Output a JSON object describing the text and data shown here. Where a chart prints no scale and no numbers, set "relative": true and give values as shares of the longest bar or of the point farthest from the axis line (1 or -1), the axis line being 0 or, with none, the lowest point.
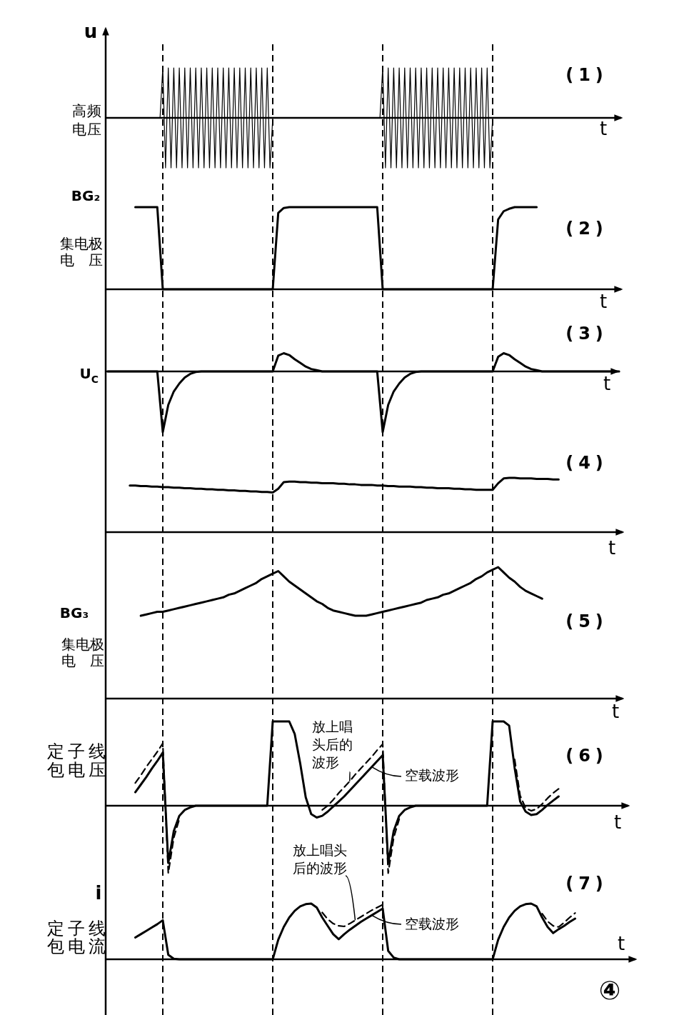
{
  "chart_data": [
    {
      "type": "line",
      "title": "(1)",
      "xlabel": "t",
      "ylabel": "高频电压",
      "annotations": [
        "u"
      ],
      "relative": true,
      "categories": [
        null,
        null,
        null,
        null,
        null,
        null,
        null,
        null,
        null,
        null,
        null,
        null,
        null,
        null,
        null,
        null,
        null,
        null,
        null,
        null,
        null,
        null,
        null,
        null,
        null,
        null,
        null,
        null,
        null,
        null,
        null,
        null,
        null,
        null,
        null,
        null,
        null,
        null,
        null,
        null,
        null,
        null,
        null,
        null,
        null,
        null,
        null,
        null,
        null,
        null,
        null,
        null,
        null,
        null,
        null,
        null,
        null,
        null,
        null,
        null,
        null,
        null,
        null,
        null,
        null,
        null,
        null,
        null,
        null,
        null,
        null,
        null,
        null,
        null,
        null,
        null,
        null,
        null,
        null,
        null,
        null,
        null,
        null,
        null,
        null,
        null,
        null,
        null,
        null,
        null,
        null,
        null,
        null,
        null,
        null,
        null,
        null,
        null,
        null,
        null,
        null,
        null,
        null,
        null,
        null,
        null,
        null,
        null,
        null,
        null,
        null,
        null,
        null,
        null,
        null,
        null,
        null,
        null,
        null,
        null,
        null,
        null,
        null,
        null,
        null,
        null,
        null,
        null,
        null,
        null,
        null,
        null,
        null,
        null,
        null,
        null,
        null,
        null,
        null,
        null,
        null,
        null,
        null,
        null,
        null,
        null,
        null,
        null,
        null,
        null,
        null,
        null,
        null,
        null,
        null,
        null,
        null,
        null,
        null,
        null,
        null,
        null,
        null,
        null,
        null,
        null,
        null,
        null,
        null,
        null,
        null,
        null,
        null,
        null,
        null,
        null,
        null,
        null,
        null,
        null,
        null,
        null,
        null,
        null,
        null,
        null,
        null
      ],
      "series": [
        {
          "color": "#000000",
          "values": [
            0,
            0,
            0,
            0,
            0,
            0,
            0,
            0,
            0,
            0,
            0,
            0,
            0,
            0,
            0,
            0,
            0,
            0,
            0,
            0,
            1,
            -1,
            1,
            -1,
            1,
            -1,
            1,
            -1,
            1,
            -1,
            1,
            -1,
            1,
            -1,
            1,
            -1,
            1,
            -1,
            1,
            -1,
            1,
            -1,
            1,
            -1,
            1,
            -1,
            1,
            -1,
            1,
            -1,
            1,
            -1,
            1,
            -1,
            1,
            -1,
            1,
            -1,
            1,
            -1,
            0,
            0,
            0,
            0,
            0,
            0,
            0,
            0,
            0,
            0,
            0,
            0,
            0,
            0,
            0,
            0,
            0,
            0,
            0,
            0,
            0,
            0,
            0,
            0,
            0,
            0,
            0,
            0,
            0,
            0,
            0,
            0,
            0,
            0,
            0,
            0,
            0,
            0,
            0,
            0,
            1,
            -1,
            1,
            -1,
            1,
            -1,
            1,
            -1,
            1,
            -1,
            1,
            -1,
            1,
            -1,
            1,
            -1,
            1,
            -1,
            1,
            -1,
            1,
            -1,
            1,
            -1,
            1,
            -1,
            1,
            -1,
            1,
            -1,
            1,
            -1,
            1,
            -1,
            1,
            -1,
            1,
            -1,
            1,
            -1,
            0,
            0,
            0,
            0,
            0,
            0,
            0,
            0,
            0,
            0,
            0,
            0,
            0,
            0,
            0,
            0,
            0,
            0,
            0,
            0,
            0,
            0,
            0,
            0,
            0,
            0,
            0,
            0,
            0,
            0,
            0,
            0,
            0,
            0,
            0,
            0,
            0,
            0,
            0,
            0,
            0,
            0,
            0,
            0,
            0,
            0,
            0
          ]
        }
      ]
    },
    {
      "type": "line",
      "title": "(2)",
      "xlabel": "t",
      "ylabel": "集电极电压",
      "annotations": [
        "BG₂"
      ],
      "relative": true,
      "categories": [
        null,
        null,
        null,
        null,
        null,
        null,
        null,
        null,
        null,
        null,
        null,
        null,
        null,
        null,
        null,
        null,
        null,
        null,
        null,
        null,
        null,
        null,
        null,
        null,
        null,
        null,
        null,
        null,
        null,
        null,
        null,
        null,
        null,
        null,
        null,
        null,
        null,
        null,
        null,
        null,
        null,
        null,
        null,
        null,
        null,
        null,
        null,
        null,
        null,
        null,
        null,
        null,
        null,
        null,
        null,
        null,
        null,
        null,
        null,
        null,
        null,
        null,
        null,
        null,
        null,
        null,
        null,
        null,
        null,
        null,
        null,
        null,
        null,
        null,
        null,
        null,
        null,
        null,
        null,
        null,
        null,
        null,
        null,
        null,
        null,
        null,
        null,
        null,
        null,
        null,
        null,
        null,
        null,
        null
      ],
      "series": [
        {
          "color": "#000000",
          "values": [
            null,
            null,
            null,
            null,
            null,
            1,
            1,
            1,
            1,
            1,
            0,
            0,
            0,
            0,
            0,
            0,
            0,
            0,
            0,
            0,
            0,
            0,
            0,
            0,
            0,
            0,
            0,
            0,
            0,
            0,
            0,
            0.93,
            0.99,
            1,
            1,
            1,
            1,
            1,
            1,
            1,
            1,
            1,
            1,
            1,
            1,
            1,
            1,
            1,
            1,
            1,
            0,
            0,
            0,
            0,
            0,
            0,
            0,
            0,
            0,
            0,
            0,
            0,
            0,
            0,
            0,
            0,
            0,
            0,
            0,
            0,
            0,
            0.85,
            0.95,
            0.98,
            1,
            1,
            1,
            1,
            1,
            null,
            null,
            null,
            null,
            null,
            null,
            null,
            null,
            null,
            null,
            null,
            null,
            null,
            null,
            null
          ]
        }
      ]
    },
    {
      "type": "line",
      "title": "(3)",
      "xlabel": "t",
      "ylabel": "U$_{C}$",
      "relative": true,
      "categories": [
        null,
        null,
        null,
        null,
        null,
        null,
        null,
        null,
        null,
        null,
        null,
        null,
        null,
        null,
        null,
        null,
        null,
        null,
        null,
        null,
        null,
        null,
        null,
        null,
        null,
        null,
        null,
        null,
        null,
        null,
        null,
        null,
        null,
        null,
        null,
        null,
        null,
        null,
        null,
        null,
        null,
        null,
        null,
        null,
        null,
        null,
        null,
        null,
        null,
        null,
        null,
        null,
        null,
        null,
        null,
        null,
        null,
        null,
        null,
        null,
        null,
        null,
        null,
        null,
        null,
        null,
        null,
        null,
        null,
        null,
        null,
        null,
        null,
        null,
        null,
        null,
        null,
        null,
        null,
        null,
        null,
        null,
        null,
        null,
        null,
        null,
        null,
        null,
        null,
        null,
        null,
        null,
        null,
        null
      ],
      "series": [
        {
          "color": "#000000",
          "values": [
            0,
            0,
            0,
            0,
            0,
            0,
            0,
            0,
            0,
            0,
            -1,
            -0.55,
            -0.33,
            -0.2,
            -0.1,
            -0.04,
            -0.01,
            0,
            0,
            0,
            0,
            0,
            0,
            0,
            0,
            0,
            0,
            0,
            0,
            0,
            0,
            0.26,
            0.3,
            0.27,
            0.2,
            0.14,
            0.08,
            0.04,
            0.02,
            0,
            0,
            0,
            0,
            0,
            0,
            0,
            0,
            0,
            0,
            0,
            -1,
            -0.55,
            -0.33,
            -0.2,
            -0.1,
            -0.04,
            -0.01,
            0,
            0,
            0,
            0,
            0,
            0,
            0,
            0,
            0,
            0,
            0,
            0,
            0,
            0,
            0.24,
            0.3,
            0.27,
            0.2,
            0.14,
            0.08,
            0.04,
            0.02,
            0,
            0,
            0,
            0,
            0,
            0,
            0,
            0,
            0,
            0,
            0,
            0,
            0,
            0,
            0
          ]
        }
      ]
    },
    {
      "type": "line",
      "title": "(4)",
      "xlabel": "t",
      "relative": true,
      "categories": [
        null,
        null,
        null,
        null,
        null,
        null,
        null,
        null,
        null,
        null,
        null,
        null,
        null,
        null,
        null,
        null,
        null,
        null,
        null,
        null,
        null,
        null,
        null,
        null,
        null,
        null,
        null,
        null,
        null,
        null,
        null,
        null,
        null,
        null,
        null,
        null,
        null,
        null,
        null,
        null,
        null,
        null,
        null,
        null,
        null,
        null,
        null,
        null,
        null,
        null,
        null,
        null,
        null,
        null,
        null,
        null,
        null,
        null,
        null,
        null,
        null,
        null,
        null,
        null,
        null,
        null,
        null,
        null,
        null,
        null,
        null,
        null,
        null,
        null,
        null,
        null,
        null,
        null,
        null,
        null,
        null,
        null,
        null,
        null,
        null,
        null,
        null,
        null,
        null,
        null,
        null,
        null,
        null,
        null
      ],
      "series": [
        {
          "color": "#000000",
          "values": [
            null,
            null,
            null,
            null,
            0.86,
            0.86,
            0.85,
            0.85,
            0.84,
            0.84,
            0.83,
            0.83,
            0.82,
            0.82,
            0.81,
            0.81,
            0.8,
            0.8,
            0.79,
            0.79,
            0.78,
            0.78,
            0.77,
            0.77,
            0.76,
            0.76,
            0.75,
            0.75,
            0.74,
            0.74,
            0.73,
            0.8,
            0.92,
            0.93,
            0.93,
            0.92,
            0.92,
            0.91,
            0.91,
            0.9,
            0.9,
            0.9,
            0.89,
            0.89,
            0.88,
            0.88,
            0.87,
            0.87,
            0.87,
            0.86,
            0.86,
            0.85,
            0.85,
            0.84,
            0.84,
            0.84,
            0.83,
            0.83,
            0.82,
            0.82,
            0.81,
            0.81,
            0.81,
            0.8,
            0.8,
            0.79,
            0.79,
            0.78,
            0.78,
            0.78,
            0.78,
            0.9,
            0.99,
            1,
            1,
            0.99,
            0.99,
            0.99,
            0.98,
            0.98,
            0.98,
            0.97,
            0.97,
            null,
            null,
            null,
            null,
            null,
            null,
            null,
            null,
            null,
            null,
            null
          ]
        }
      ]
    },
    {
      "type": "line",
      "title": "(5)",
      "xlabel": "t",
      "ylabel": "集电极电压",
      "annotations": [
        "BG₃"
      ],
      "relative": true,
      "categories": [
        null,
        null,
        null,
        null,
        null,
        null,
        null,
        null,
        null,
        null,
        null,
        null,
        null,
        null,
        null,
        null,
        null,
        null,
        null,
        null,
        null,
        null,
        null,
        null,
        null,
        null,
        null,
        null,
        null,
        null,
        null,
        null,
        null,
        null,
        null,
        null,
        null,
        null,
        null,
        null,
        null,
        null,
        null,
        null,
        null,
        null,
        null,
        null,
        null,
        null,
        null,
        null,
        null,
        null,
        null,
        null,
        null,
        null,
        null,
        null,
        null,
        null,
        null,
        null,
        null,
        null,
        null,
        null,
        null,
        null,
        null,
        null,
        null,
        null,
        null,
        null,
        null,
        null,
        null,
        null,
        null,
        null,
        null,
        null,
        null,
        null,
        null,
        null,
        null,
        null,
        null,
        null,
        null,
        null
      ],
      "series": [
        {
          "color": "#000000",
          "values": [
            null,
            null,
            null,
            null,
            null,
            null,
            0.63,
            0.64,
            0.65,
            0.66,
            0.66,
            0.67,
            0.68,
            0.69,
            0.7,
            0.71,
            0.72,
            0.73,
            0.74,
            0.75,
            0.76,
            0.77,
            0.79,
            0.8,
            0.82,
            0.84,
            0.86,
            0.88,
            0.91,
            0.93,
            0.95,
            0.97,
            0.93,
            0.89,
            0.86,
            0.83,
            0.8,
            0.77,
            0.74,
            0.72,
            0.69,
            0.67,
            0.66,
            0.65,
            0.64,
            0.63,
            0.63,
            0.63,
            0.64,
            0.65,
            0.66,
            0.67,
            0.68,
            0.69,
            0.7,
            0.71,
            0.72,
            0.73,
            0.75,
            0.76,
            0.77,
            0.79,
            0.8,
            0.82,
            0.84,
            0.86,
            0.88,
            0.91,
            0.93,
            0.96,
            0.98,
            1,
            0.96,
            0.92,
            0.89,
            0.85,
            0.82,
            0.8,
            0.78,
            0.76,
            null,
            null,
            null,
            null,
            null,
            null,
            null,
            null,
            null,
            null,
            null,
            null,
            null,
            null
          ]
        }
      ]
    },
    {
      "type": "line",
      "title": "(6)",
      "xlabel": "t",
      "ylabel": "定子线包电压",
      "relative": true,
      "categories": [
        null,
        null,
        null,
        null,
        null,
        null,
        null,
        null,
        null,
        null,
        null,
        null,
        null,
        null,
        null,
        null,
        null,
        null,
        null,
        null,
        null,
        null,
        null,
        null,
        null,
        null,
        null,
        null,
        null,
        null,
        null,
        null,
        null,
        null,
        null,
        null,
        null,
        null,
        null,
        null,
        null,
        null,
        null,
        null,
        null,
        null,
        null,
        null,
        null,
        null,
        null,
        null,
        null,
        null,
        null,
        null,
        null,
        null,
        null,
        null,
        null,
        null,
        null,
        null,
        null,
        null,
        null,
        null,
        null,
        null,
        null,
        null,
        null,
        null,
        null,
        null,
        null,
        null,
        null,
        null,
        null,
        null,
        null,
        null,
        null,
        null,
        null,
        null,
        null,
        null,
        null,
        null,
        null,
        null
      ],
      "series": [
        {
          "name": "空载波形",
          "color": "#000000",
          "values": [
            null,
            null,
            null,
            null,
            null,
            0.16,
            0.25,
            0.34,
            0.44,
            0.53,
            0.63,
            -0.68,
            -0.3,
            -0.12,
            -0.05,
            -0.02,
            0,
            0,
            0,
            0,
            0,
            0,
            0,
            0,
            0,
            0,
            0,
            0,
            0,
            0,
            1,
            1,
            1,
            1,
            0.85,
            0.5,
            0.1,
            -0.1,
            -0.14,
            -0.12,
            -0.07,
            -0.01,
            0.05,
            0.11,
            0.18,
            0.25,
            0.32,
            0.39,
            0.46,
            0.53,
            0.6,
            -0.68,
            -0.3,
            -0.12,
            -0.05,
            -0.02,
            0,
            0,
            0,
            0,
            0,
            0,
            0,
            0,
            0,
            0,
            0,
            0,
            0,
            0,
            1,
            1,
            1,
            0.95,
            0.45,
            0.05,
            -0.07,
            -0.11,
            -0.1,
            -0.05,
            0.01,
            0.06,
            0.11,
            null,
            null,
            null,
            null,
            null,
            null,
            null,
            null,
            null,
            null,
            null
          ]
        },
        {
          "name": "放上唱头后的波形",
          "color": "#000000",
          "line_style": "dashed",
          "values": [
            null,
            null,
            null,
            null,
            null,
            0.27,
            0.36,
            0.46,
            0.55,
            0.64,
            0.74,
            -0.8,
            -0.38,
            -0.16,
            null,
            null,
            null,
            null,
            null,
            null,
            null,
            null,
            null,
            null,
            null,
            null,
            null,
            null,
            null,
            null,
            null,
            null,
            null,
            null,
            null,
            null,
            null,
            null,
            null,
            -0.05,
            0,
            0.07,
            0.15,
            0.22,
            0.29,
            0.37,
            0.44,
            0.51,
            0.58,
            0.66,
            0.73,
            -0.8,
            -0.38,
            -0.16,
            null,
            null,
            null,
            null,
            null,
            null,
            null,
            null,
            null,
            null,
            null,
            null,
            null,
            null,
            null,
            null,
            null,
            null,
            null,
            null,
            0.55,
            0.12,
            -0.03,
            -0.06,
            -0.04,
            0.02,
            0.09,
            0.15,
            0.2,
            null,
            null,
            null,
            null,
            null,
            null,
            null,
            null,
            null,
            null,
            null
          ]
        }
      ]
    },
    {
      "type": "line",
      "title": "(7)",
      "xlabel": "t",
      "ylabel": "定子线包电流",
      "annotations": [
        "i",
        "④"
      ],
      "relative": true,
      "categories": [
        null,
        null,
        null,
        null,
        null,
        null,
        null,
        null,
        null,
        null,
        null,
        null,
        null,
        null,
        null,
        null,
        null,
        null,
        null,
        null,
        null,
        null,
        null,
        null,
        null,
        null,
        null,
        null,
        null,
        null,
        null,
        null,
        null,
        null,
        null,
        null,
        null,
        null,
        null,
        null,
        null,
        null,
        null,
        null,
        null,
        null,
        null,
        null,
        null,
        null,
        null,
        null,
        null,
        null,
        null,
        null,
        null,
        null,
        null,
        null,
        null,
        null,
        null,
        null,
        null,
        null,
        null,
        null,
        null,
        null,
        null,
        null,
        null,
        null,
        null,
        null,
        null,
        null,
        null,
        null,
        null,
        null,
        null,
        null,
        null,
        null,
        null,
        null,
        null,
        null,
        null,
        null,
        null,
        null
      ],
      "series": [
        {
          "name": "空载波形",
          "color": "#000000",
          "values": [
            null,
            null,
            null,
            null,
            null,
            0.39,
            0.45,
            0.51,
            0.57,
            0.63,
            0.7,
            0.08,
            0.01,
            0,
            0,
            0,
            0,
            0,
            0,
            0,
            0,
            0,
            0,
            0,
            0,
            0,
            0,
            0,
            0,
            0,
            0,
            0.35,
            0.58,
            0.75,
            0.87,
            0.95,
            0.99,
            1,
            0.93,
            0.75,
            0.6,
            0.45,
            0.36,
            0.45,
            0.53,
            0.6,
            0.67,
            0.73,
            0.79,
            0.85,
            0.91,
            0.15,
            0.03,
            0,
            0,
            0,
            0,
            0,
            0,
            0,
            0,
            0,
            0,
            0,
            0,
            0,
            0,
            0,
            0,
            0,
            0,
            0.35,
            0.58,
            0.75,
            0.87,
            0.95,
            0.99,
            1,
            0.95,
            0.75,
            0.58,
            0.47,
            0.54,
            0.6,
            0.67,
            0.73,
            null,
            null,
            null,
            null,
            null,
            null,
            null,
            null
          ]
        },
        {
          "name": "放上唱头后的波形",
          "color": "#000000",
          "line_style": "dashed",
          "values": [
            null,
            null,
            null,
            null,
            null,
            null,
            null,
            null,
            null,
            null,
            null,
            null,
            null,
            null,
            null,
            null,
            null,
            null,
            null,
            null,
            null,
            null,
            null,
            null,
            null,
            null,
            null,
            null,
            null,
            null,
            null,
            null,
            null,
            null,
            null,
            null,
            null,
            null,
            null,
            0.84,
            0.72,
            0.64,
            0.6,
            0.59,
            0.64,
            0.7,
            0.76,
            0.82,
            0.88,
            0.93,
            0.98,
            null,
            null,
            null,
            null,
            null,
            null,
            null,
            null,
            null,
            null,
            null,
            null,
            null,
            null,
            null,
            null,
            null,
            null,
            null,
            null,
            null,
            null,
            null,
            null,
            null,
            null,
            null,
            null,
            0.82,
            0.68,
            0.6,
            0.58,
            0.66,
            0.75,
            0.83,
            null,
            null,
            null,
            null,
            null,
            null,
            null,
            null
          ]
        }
      ]
    }
  ]
}
